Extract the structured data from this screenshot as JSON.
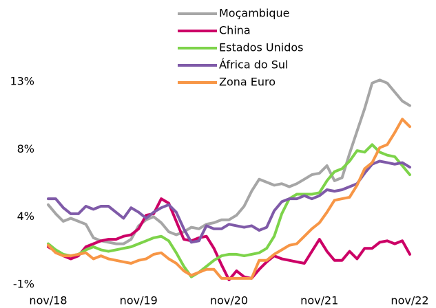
{
  "chart_data": {
    "type": "line",
    "categories": [
      "nov/18",
      null,
      null,
      null,
      null,
      null,
      null,
      null,
      null,
      null,
      null,
      null,
      "nov/19",
      null,
      null,
      null,
      null,
      null,
      null,
      null,
      null,
      null,
      null,
      null,
      "nov/20",
      null,
      null,
      null,
      null,
      null,
      null,
      null,
      null,
      null,
      null,
      null,
      "nov/21",
      null,
      null,
      null,
      null,
      null,
      null,
      null,
      null,
      null,
      null,
      null,
      "nov/22"
    ],
    "ylim": [
      -0.9,
      12.6
    ],
    "yticks": [
      {
        "value": -0.9,
        "label": "-1%"
      },
      {
        "value": 3.6,
        "label": "4%"
      },
      {
        "value": 8.1,
        "label": "8%"
      },
      {
        "value": 12.6,
        "label": "13%"
      }
    ],
    "grid": false,
    "legend": "top",
    "series": [
      {
        "name": "Moçambique",
        "color": "#a6a6a6",
        "values": [
          4.6,
          4.0,
          3.5,
          3.7,
          3.5,
          3.3,
          2.4,
          2.2,
          2.1,
          2.0,
          2.0,
          2.3,
          3.2,
          3.6,
          3.8,
          3.4,
          2.8,
          2.6,
          2.8,
          3.1,
          3.0,
          3.3,
          3.4,
          3.6,
          3.6,
          3.9,
          4.5,
          5.5,
          6.3,
          6.1,
          5.9,
          6.0,
          5.8,
          6.0,
          6.3,
          6.6,
          6.7,
          7.2,
          6.2,
          6.4,
          8.0,
          9.5,
          11.0,
          12.7,
          12.9,
          12.7,
          12.1,
          11.5,
          11.2
        ]
      },
      {
        "name": "China",
        "color": "#cc0066",
        "values": [
          1.8,
          1.5,
          1.2,
          1.0,
          1.2,
          1.8,
          2.0,
          2.2,
          2.3,
          2.3,
          2.5,
          2.6,
          3.0,
          3.9,
          4.0,
          5.0,
          4.7,
          3.5,
          2.3,
          2.2,
          2.4,
          2.5,
          1.7,
          0.6,
          -0.4,
          0.2,
          -0.2,
          -0.3,
          0.3,
          0.8,
          1.2,
          1.0,
          0.9,
          0.8,
          0.7,
          1.5,
          2.3,
          1.5,
          0.9,
          0.9,
          1.5,
          1.0,
          1.7,
          1.7,
          2.1,
          2.2,
          2.0,
          2.2,
          1.3
        ]
      },
      {
        "name": "Estados Unidos",
        "color": "#7dd34a",
        "values": [
          2.0,
          1.6,
          1.3,
          1.2,
          1.3,
          1.6,
          1.8,
          1.6,
          1.5,
          1.6,
          1.7,
          1.8,
          2.0,
          2.2,
          2.4,
          2.5,
          2.2,
          1.4,
          0.5,
          -0.2,
          0.1,
          0.5,
          0.9,
          1.2,
          1.3,
          1.3,
          1.2,
          1.3,
          1.4,
          1.7,
          2.5,
          4.0,
          5.0,
          5.3,
          5.3,
          5.3,
          5.4,
          6.2,
          6.8,
          7.0,
          7.5,
          8.2,
          8.1,
          8.6,
          8.1,
          7.9,
          7.8,
          7.2,
          6.6
        ]
      },
      {
        "name": "África do Sul",
        "color": "#7f5aa8",
        "values": [
          5.0,
          5.0,
          4.4,
          4.0,
          4.0,
          4.5,
          4.3,
          4.5,
          4.5,
          4.1,
          3.7,
          4.4,
          4.1,
          3.7,
          4.1,
          4.4,
          4.6,
          4.1,
          3.0,
          2.1,
          2.2,
          3.2,
          3.0,
          3.0,
          3.3,
          3.2,
          3.1,
          3.2,
          2.9,
          3.1,
          4.2,
          4.8,
          5.0,
          5.0,
          5.2,
          5.0,
          5.2,
          5.6,
          5.5,
          5.6,
          5.8,
          6.0,
          6.7,
          7.3,
          7.5,
          7.4,
          7.3,
          7.4,
          7.1
        ]
      },
      {
        "name": "Zona Euro",
        "color": "#f79646",
        "values": [
          1.9,
          1.4,
          1.2,
          1.2,
          1.3,
          1.4,
          1.0,
          1.2,
          1.0,
          0.9,
          0.8,
          0.7,
          0.9,
          1.0,
          1.3,
          1.4,
          1.0,
          0.7,
          0.2,
          -0.1,
          0.1,
          0.3,
          0.3,
          -0.3,
          -0.3,
          -0.3,
          -0.3,
          -0.3,
          0.9,
          0.9,
          1.3,
          1.6,
          1.9,
          2.0,
          2.5,
          3.0,
          3.4,
          4.1,
          4.9,
          5.0,
          5.1,
          5.9,
          7.0,
          7.4,
          8.4,
          8.6,
          9.4,
          10.3,
          9.8
        ]
      }
    ]
  }
}
